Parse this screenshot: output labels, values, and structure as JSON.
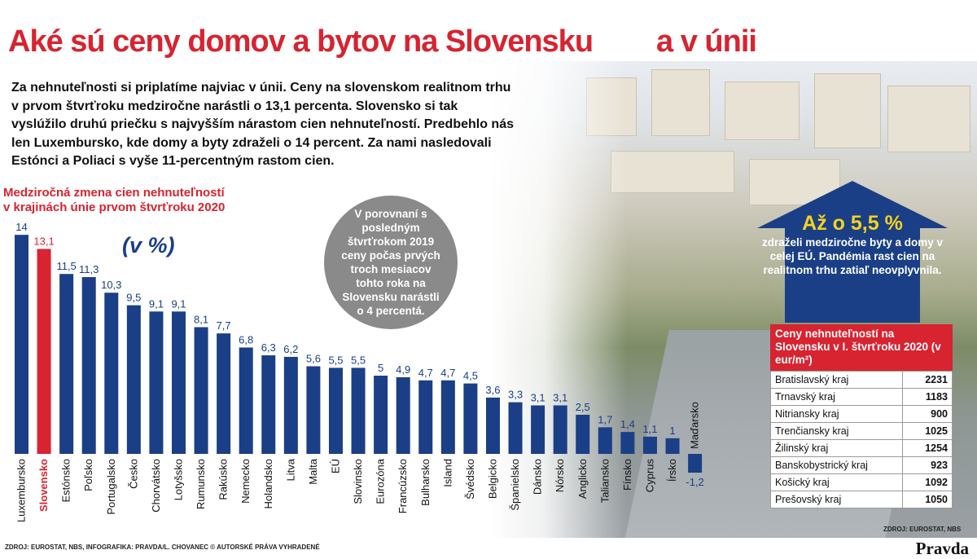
{
  "header": {
    "title_part1": "Aké sú ceny domov a bytov na Slovensku",
    "title_part2": "a v únii"
  },
  "intro": "Za nehnuteľnosti si priplatíme najviac v únii. Ceny na slovenskom realitnom trhu v prvom štvrťroku medziročne narástli o 13,1 percenta. Slovensko si tak vyslúžilo druhú priečku s najvyšším nárastom cien nehnuteľností. Predbehlo nás len Luxembursko, kde domy a byty zdraželi o 14 percent. Za nami nasledovali Estónci a Poliaci s vyše 11-percentným rastom cien.",
  "colors": {
    "red": "#d82330",
    "blue": "#1a3f86",
    "yellow": "#f5d21f",
    "grey": "#8a8a8a"
  },
  "chart_data": {
    "type": "bar",
    "title_line1": "Medziročná zmena cien nehnuteľností",
    "title_line2": "v krajinách únie prvom štvrťroku 2020",
    "unit": "(v %)",
    "highlight": "Slovensko",
    "categories": [
      "Luxembursko",
      "Slovensko",
      "Estónsko",
      "Poľsko",
      "Portugalsko",
      "Česko",
      "Chorvátsko",
      "Lotyšsko",
      "Rumunsko",
      "Rakúsko",
      "Nemecko",
      "Holandsko",
      "Litva",
      "Malta",
      "EÚ",
      "Slovinsko",
      "Eurozóna",
      "Francúzsko",
      "Bulharsko",
      "Island",
      "Švédsko",
      "Belgicko",
      "Španielsko",
      "Dánsko",
      "Nórsko",
      "Anglicko",
      "Taliansko",
      "Fínsko",
      "Cyprus",
      "Írsko",
      "Maďarsko"
    ],
    "values": [
      14,
      13.1,
      11.5,
      11.3,
      10.3,
      9.5,
      9.1,
      9.1,
      8.1,
      7.7,
      6.8,
      6.3,
      6.2,
      5.6,
      5.5,
      5.5,
      5,
      4.9,
      4.7,
      4.7,
      4.5,
      3.6,
      3.3,
      3.1,
      3.1,
      2.5,
      1.7,
      1.4,
      1.1,
      1,
      -1.2
    ],
    "value_labels": [
      "14",
      "13,1",
      "11,5",
      "11,3",
      "10,3",
      "9,5",
      "9,1",
      "9,1",
      "8,1",
      "7,7",
      "6,8",
      "6,3",
      "6,2",
      "5,6",
      "5,5",
      "5,5",
      "5",
      "4,9",
      "4,7",
      "4,7",
      "4,5",
      "3,6",
      "3,3",
      "3,1",
      "3,1",
      "2,5",
      "1,7",
      "1,4",
      "1,1",
      "1",
      "-1,2"
    ]
  },
  "bubble_text": "V porovnaní s posledným štvrťrokom 2019 ceny počas prvých troch mesiacov tohto roka na Slovensku narástli o 4 percentá.",
  "arrow_box": {
    "headline": "Až o 5,5 %",
    "text": "zdraželi medziročne byty a domy v celej EÚ. Pandémia rast cien na realitnom trhu zatiaľ neovplyvnila."
  },
  "price_table": {
    "title": "Ceny nehnuteľností na Slovensku v I. štvrťroku 2020 (v eur/m²)",
    "rows": [
      {
        "region": "Bratislavský kraj",
        "value": "2231"
      },
      {
        "region": "Trnavský kraj",
        "value": "1183"
      },
      {
        "region": "Nitriansky kraj",
        "value": "900"
      },
      {
        "region": "Trenčiansky kraj",
        "value": "1025"
      },
      {
        "region": "Žilinský kraj",
        "value": "1254"
      },
      {
        "region": "Banskobystrický kraj",
        "value": "923"
      },
      {
        "region": "Košický kraj",
        "value": "1092"
      },
      {
        "region": "Prešovský kraj",
        "value": "1050"
      }
    ],
    "source": "ZDROJ: EUROSTAT, NBS"
  },
  "footer": {
    "source": "ZDROJ: EUROSTAT, NBS, INFOGRAFIKA: PRAVDA/L. CHOVANEC © AUTORSKÉ PRÁVA VYHRADENÉ",
    "logo": "Pravda"
  }
}
